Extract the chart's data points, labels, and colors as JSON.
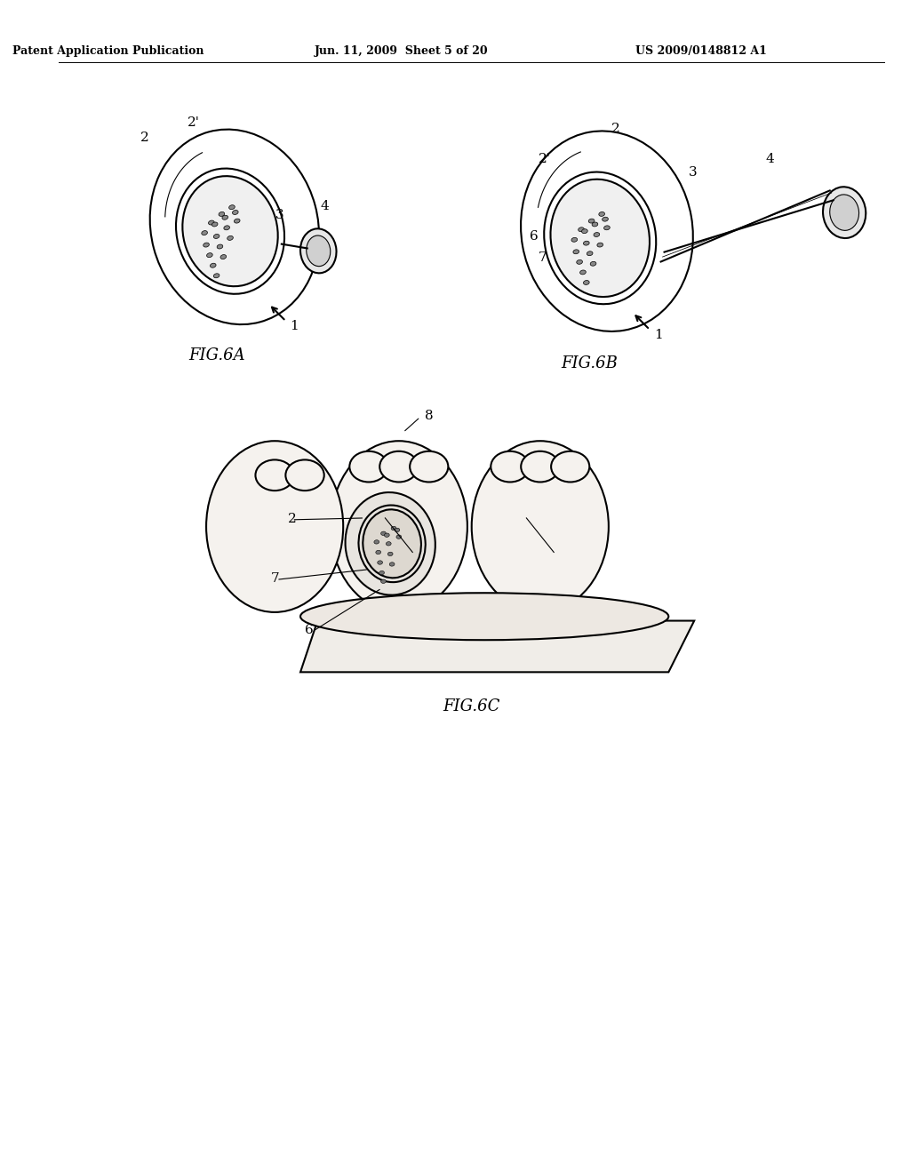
{
  "bg_color": "#ffffff",
  "header_left": "Patent Application Publication",
  "header_mid": "Jun. 11, 2009  Sheet 5 of 20",
  "header_right": "US 2009/0148812 A1",
  "fig_labels": [
    "FIG.6A",
    "FIG.6B",
    "FIG.6C"
  ],
  "line_color": "#000000",
  "line_width": 1.5,
  "thin_line": 0.8
}
